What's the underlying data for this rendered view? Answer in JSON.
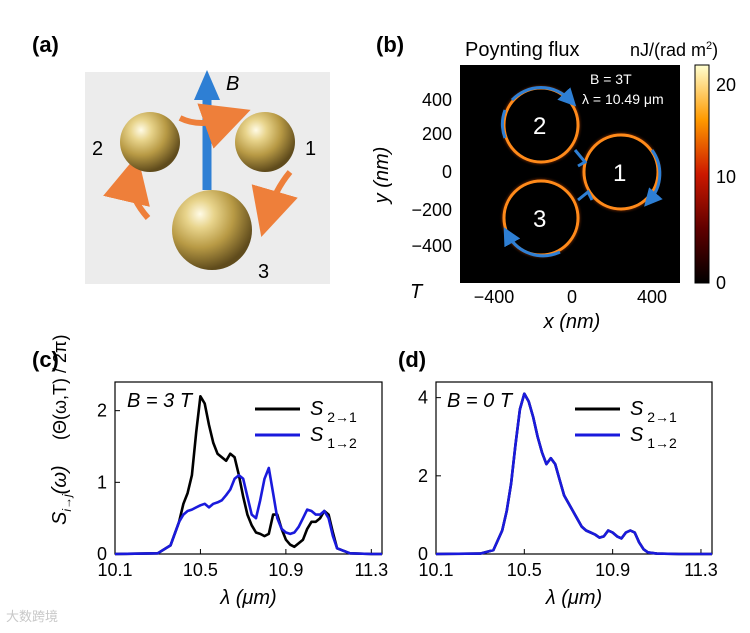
{
  "panels": {
    "a": {
      "label": "(a)",
      "field_label": "B",
      "sphere_labels": [
        "2",
        "1",
        "3"
      ]
    },
    "b": {
      "label": "(b)",
      "title": "Poynting flux",
      "unit": "nJ/(rad m",
      "unit_sup": "2",
      "unit_close": ")",
      "annot_field": "B = 3T",
      "annot_wavelength": "λ = 10.49 μm",
      "colorbar_ticks": [
        "20",
        "10",
        "0"
      ],
      "y_ticks": [
        "400",
        "200",
        "0",
        "−200",
        "−400"
      ],
      "x_ticks": [
        "−400",
        "0",
        "400"
      ],
      "x_label": "x (nm)",
      "y_label": "y (nm)",
      "corner_label": "T",
      "particle_labels": [
        "2",
        "1",
        "3"
      ]
    },
    "c": {
      "label": "(c)",
      "annotation": "B = 3 T",
      "y_label_main": "S",
      "y_label_sub": "i→j",
      "y_label_arg": "(ω)",
      "y_label_frac": "(Θ(ω,T) / 2π)"
    },
    "d": {
      "label": "(d)",
      "annotation": "B = 0 T"
    }
  },
  "colors": {
    "series_1": "#000000",
    "series_2": "#1a1adc",
    "arrow_orange": "#ee7f3a",
    "arrow_blue": "#2e7fd4",
    "sphere_gold": "#c9ac57"
  },
  "chart_data": [
    {
      "type": "line",
      "panel": "c",
      "title": "B = 3 T",
      "xlabel": "λ (μm)",
      "ylabel": "S i→j (ω) (Θ(ω,T)/2π)",
      "xlim": [
        10.1,
        11.35
      ],
      "ylim": [
        0,
        2.4
      ],
      "xticks": [
        10.1,
        10.5,
        10.9,
        11.3
      ],
      "xtick_labels": [
        "10.1",
        "10.5",
        "10.9",
        "11.3"
      ],
      "yticks": [
        0,
        1,
        2
      ],
      "ytick_labels": [
        "0",
        "1",
        "2"
      ],
      "series": [
        {
          "name": "S 2→1",
          "color": "#000000",
          "x": [
            10.1,
            10.3,
            10.36,
            10.4,
            10.42,
            10.44,
            10.46,
            10.48,
            10.5,
            10.52,
            10.54,
            10.56,
            10.58,
            10.6,
            10.62,
            10.64,
            10.66,
            10.68,
            10.7,
            10.72,
            10.74,
            10.76,
            10.78,
            10.8,
            10.82,
            10.84,
            10.86,
            10.88,
            10.9,
            10.92,
            10.94,
            10.96,
            10.98,
            11.0,
            11.02,
            11.04,
            11.06,
            11.08,
            11.1,
            11.12,
            11.14,
            11.2,
            11.3,
            11.35
          ],
          "values": [
            0.0,
            0.01,
            0.12,
            0.45,
            0.7,
            0.85,
            1.1,
            1.7,
            2.2,
            2.1,
            1.8,
            1.55,
            1.4,
            1.35,
            1.3,
            1.4,
            1.35,
            1.1,
            0.8,
            0.55,
            0.4,
            0.3,
            0.28,
            0.25,
            0.28,
            0.55,
            0.55,
            0.35,
            0.2,
            0.13,
            0.1,
            0.15,
            0.2,
            0.35,
            0.45,
            0.45,
            0.5,
            0.6,
            0.55,
            0.3,
            0.08,
            0.01,
            0.0,
            0.0
          ]
        },
        {
          "name": "S 1→2",
          "color": "#1a1adc",
          "x": [
            10.1,
            10.3,
            10.36,
            10.4,
            10.42,
            10.44,
            10.46,
            10.48,
            10.5,
            10.52,
            10.54,
            10.56,
            10.58,
            10.6,
            10.62,
            10.64,
            10.66,
            10.68,
            10.7,
            10.72,
            10.74,
            10.76,
            10.78,
            10.8,
            10.82,
            10.84,
            10.86,
            10.88,
            10.9,
            10.92,
            10.94,
            10.96,
            10.98,
            11.0,
            11.02,
            11.04,
            11.06,
            11.08,
            11.1,
            11.12,
            11.14,
            11.2,
            11.3,
            11.35
          ],
          "values": [
            0.0,
            0.01,
            0.12,
            0.45,
            0.55,
            0.6,
            0.62,
            0.65,
            0.68,
            0.7,
            0.65,
            0.7,
            0.72,
            0.75,
            0.82,
            0.9,
            1.05,
            1.1,
            1.05,
            0.8,
            0.55,
            0.5,
            0.75,
            1.05,
            1.2,
            0.85,
            0.5,
            0.35,
            0.3,
            0.28,
            0.3,
            0.38,
            0.5,
            0.62,
            0.6,
            0.55,
            0.55,
            0.6,
            0.5,
            0.25,
            0.08,
            0.01,
            0.0,
            0.0
          ]
        }
      ]
    },
    {
      "type": "line",
      "panel": "d",
      "title": "B = 0 T",
      "xlabel": "λ (μm)",
      "xlim": [
        10.1,
        11.35
      ],
      "ylim": [
        0,
        4.4
      ],
      "xticks": [
        10.1,
        10.5,
        10.9,
        11.3
      ],
      "xtick_labels": [
        "10.1",
        "10.5",
        "10.9",
        "11.3"
      ],
      "yticks": [
        0,
        2,
        4
      ],
      "ytick_labels": [
        "0",
        "2",
        "4"
      ],
      "series": [
        {
          "name": "S 2→1",
          "color": "#000000",
          "x": [
            10.1,
            10.3,
            10.36,
            10.4,
            10.42,
            10.44,
            10.46,
            10.48,
            10.5,
            10.52,
            10.54,
            10.56,
            10.58,
            10.6,
            10.62,
            10.64,
            10.66,
            10.68,
            10.7,
            10.72,
            10.74,
            10.76,
            10.78,
            10.8,
            10.82,
            10.84,
            10.86,
            10.88,
            10.9,
            10.92,
            10.94,
            10.96,
            10.98,
            11.0,
            11.02,
            11.04,
            11.06,
            11.1,
            11.2,
            11.3,
            11.35
          ],
          "values": [
            0.0,
            0.01,
            0.1,
            0.6,
            1.1,
            1.8,
            2.8,
            3.7,
            4.1,
            3.9,
            3.5,
            3.0,
            2.6,
            2.3,
            2.45,
            2.3,
            1.9,
            1.5,
            1.3,
            1.1,
            0.9,
            0.7,
            0.6,
            0.55,
            0.5,
            0.42,
            0.45,
            0.6,
            0.55,
            0.45,
            0.4,
            0.55,
            0.6,
            0.55,
            0.3,
            0.12,
            0.04,
            0.01,
            0.0,
            0.0,
            0.0
          ]
        },
        {
          "name": "S 1→2",
          "color": "#1a1adc",
          "x": [
            10.1,
            10.3,
            10.36,
            10.4,
            10.42,
            10.44,
            10.46,
            10.48,
            10.5,
            10.52,
            10.54,
            10.56,
            10.58,
            10.6,
            10.62,
            10.64,
            10.66,
            10.68,
            10.7,
            10.72,
            10.74,
            10.76,
            10.78,
            10.8,
            10.82,
            10.84,
            10.86,
            10.88,
            10.9,
            10.92,
            10.94,
            10.96,
            10.98,
            11.0,
            11.02,
            11.04,
            11.06,
            11.1,
            11.2,
            11.3,
            11.35
          ],
          "values": [
            0.0,
            0.01,
            0.1,
            0.6,
            1.1,
            1.8,
            2.8,
            3.7,
            4.1,
            3.9,
            3.5,
            3.0,
            2.6,
            2.3,
            2.45,
            2.3,
            1.9,
            1.5,
            1.3,
            1.1,
            0.9,
            0.7,
            0.6,
            0.55,
            0.5,
            0.42,
            0.45,
            0.6,
            0.55,
            0.45,
            0.4,
            0.55,
            0.6,
            0.55,
            0.3,
            0.12,
            0.04,
            0.01,
            0.0,
            0.0,
            0.0
          ]
        }
      ],
      "legend": [
        "S 2→1",
        "S 1→2"
      ]
    }
  ],
  "watermark": "大数跨境"
}
